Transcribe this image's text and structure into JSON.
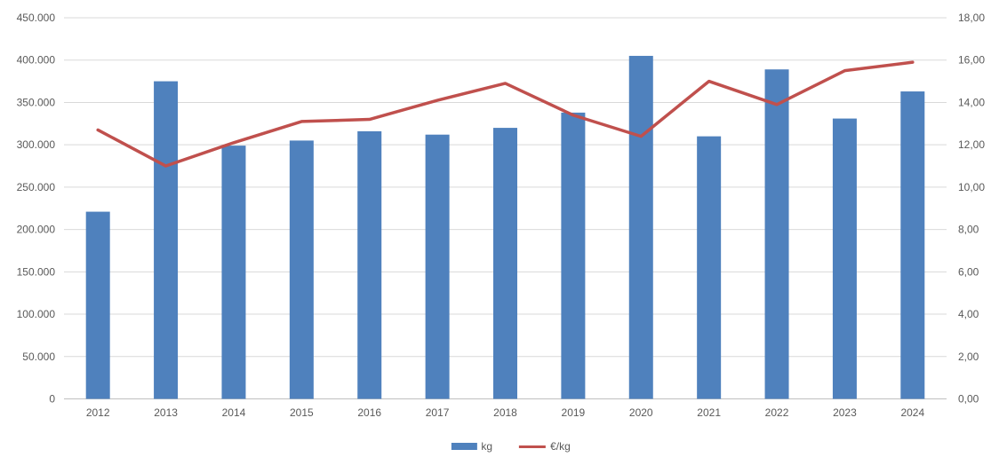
{
  "chart_data": {
    "type": "bar",
    "subtype": "combo-bar-line",
    "title": "",
    "categories": [
      "2012",
      "2013",
      "2014",
      "2015",
      "2016",
      "2017",
      "2018",
      "2019",
      "2020",
      "2021",
      "2022",
      "2023",
      "2024"
    ],
    "series": [
      {
        "name": "kg",
        "type": "bar",
        "axis": "left",
        "color": "#4F81BD",
        "values": [
          221000,
          375000,
          299000,
          305000,
          316000,
          312000,
          320000,
          338000,
          405000,
          310000,
          389000,
          331000,
          363000
        ]
      },
      {
        "name": "€/kg",
        "type": "line",
        "axis": "right",
        "color": "#C0504D",
        "values": [
          12.7,
          11.0,
          12.1,
          13.1,
          13.2,
          14.1,
          14.9,
          13.4,
          12.4,
          15.0,
          13.9,
          15.5,
          15.9
        ]
      }
    ],
    "y_axis_left": {
      "min": 0,
      "max": 450000,
      "step": 50000,
      "tick_labels": [
        "0",
        "50.000",
        "100.000",
        "150.000",
        "200.000",
        "250.000",
        "300.000",
        "350.000",
        "400.000",
        "450.000"
      ]
    },
    "y_axis_right": {
      "min": 0,
      "max": 18,
      "step": 2,
      "tick_labels": [
        "0,00",
        "2,00",
        "4,00",
        "6,00",
        "8,00",
        "10,00",
        "12,00",
        "14,00",
        "16,00",
        "18,00"
      ]
    },
    "legend": {
      "position": "bottom",
      "items": [
        "kg",
        "€/kg"
      ]
    },
    "grid": true,
    "colors": {
      "gridline": "#D9D9D9",
      "axis_line": "#BFBFBF",
      "tick_text": "#595959"
    }
  }
}
